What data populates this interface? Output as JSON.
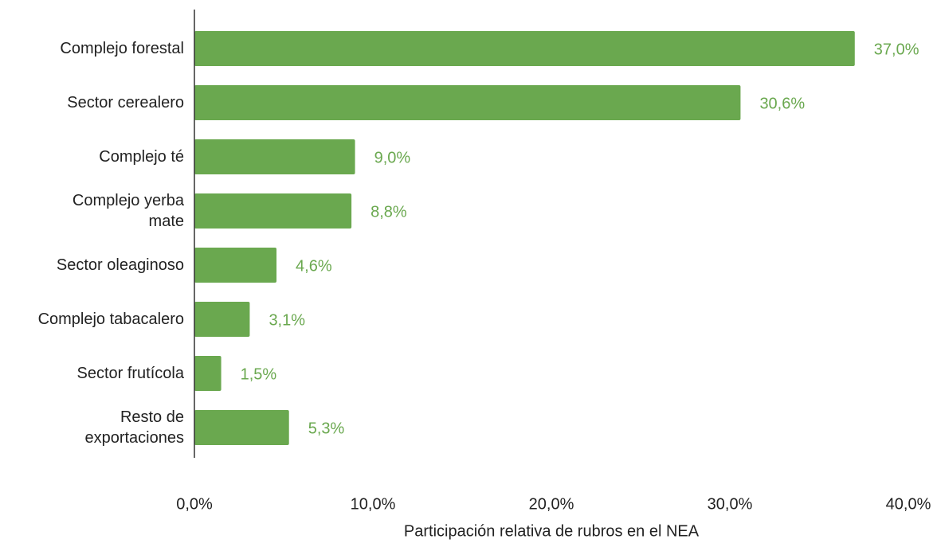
{
  "chart_data": {
    "type": "barh",
    "x_label": "Participación relativa de rubros en el NEA",
    "categories": [
      "Complejo forestal",
      "Sector cerealero",
      "Complejo té",
      "Complejo yerba\nmate",
      "Sector oleaginoso",
      "Complejo tabacalero",
      "Sector frutícola",
      "Resto de\nexportaciones"
    ],
    "values": [
      37.0,
      30.6,
      9.0,
      8.8,
      4.6,
      3.1,
      1.5,
      5.3
    ],
    "value_labels": [
      "37,0%",
      "30,6%",
      "9,0%",
      "8,8%",
      "4,6%",
      "3,1%",
      "1,5%",
      "5,3%"
    ],
    "color": "#6aa84f",
    "xlim": [
      0,
      40
    ],
    "xticks": [
      {
        "value": 0,
        "label": "0,0%"
      },
      {
        "value": 10,
        "label": "10,0%"
      },
      {
        "value": 20,
        "label": "20,0%"
      },
      {
        "value": 30,
        "label": "30,0%"
      },
      {
        "value": 40,
        "label": "40,0%"
      }
    ],
    "grid": false
  }
}
